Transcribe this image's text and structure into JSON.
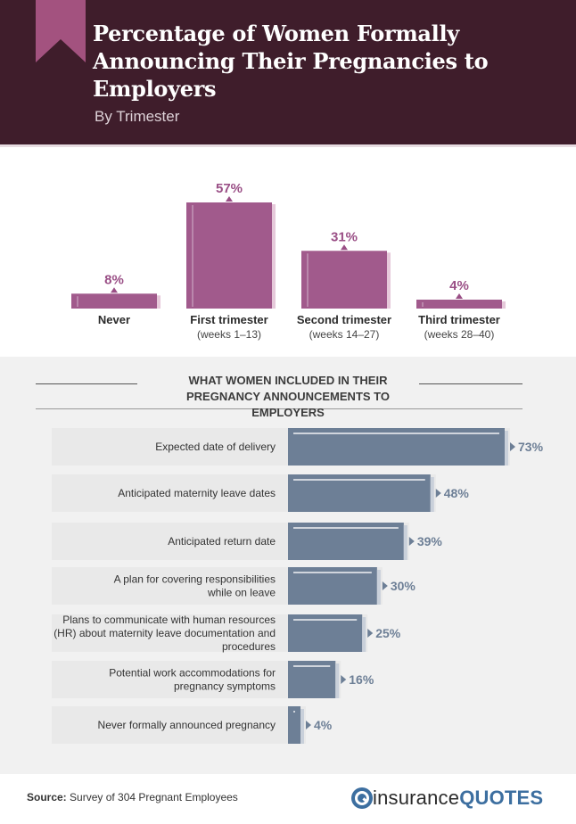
{
  "header": {
    "title": "Percentage of Women Formally Announcing Their Pregnancies to Employers",
    "subtitle": "By Trimester"
  },
  "colors": {
    "header_bg": "#3f1d2b",
    "ribbon": "#a3527f",
    "purple_bar": "#a15a8c",
    "purple_label": "#9a4f86",
    "blue_bar": "#6d7f96",
    "blue_label": "#6d7f96"
  },
  "chart_data": [
    {
      "type": "bar",
      "title": "Percentage of Women Formally Announcing Their Pregnancies to Employers",
      "subtitle": "By Trimester",
      "categories": [
        "Never",
        "First trimester",
        "Second trimester",
        "Third trimester"
      ],
      "sublabels": [
        "",
        "(weeks 1–13)",
        "(weeks 14–27)",
        "(weeks 28–40)"
      ],
      "values": [
        8,
        57,
        31,
        4
      ],
      "value_labels": [
        "8%",
        "57%",
        "31%",
        "4%"
      ],
      "unit": "%",
      "ylim": [
        0,
        57
      ],
      "grid": false,
      "legend": "none"
    },
    {
      "type": "bar",
      "orientation": "horizontal",
      "title": "WHAT WOMEN INCLUDED IN THEIR PREGNANCY ANNOUNCEMENTS TO EMPLOYERS",
      "categories": [
        "Expected date of delivery",
        "Anticipated maternity leave dates",
        "Anticipated return date",
        "A plan for covering responsibilities while on leave",
        "Plans to communicate with human resources (HR) about maternity leave documentation and procedures",
        "Potential work accommodations for pregnancy symptoms",
        "Never formally announced pregnancy"
      ],
      "category_lines": [
        [
          "Expected date of delivery"
        ],
        [
          "Anticipated maternity leave dates"
        ],
        [
          "Anticipated return date"
        ],
        [
          "A plan for covering responsibilities",
          "while on leave"
        ],
        [
          "Plans to communicate with human resources",
          "(HR) about maternity leave documentation and",
          "procedures"
        ],
        [
          "Potential work accommodations for",
          "pregnancy symptoms"
        ],
        [
          "Never formally announced pregnancy"
        ]
      ],
      "values": [
        73,
        48,
        39,
        30,
        25,
        16,
        4
      ],
      "value_labels": [
        "73%",
        "48%",
        "39%",
        "30%",
        "25%",
        "16%",
        "4%"
      ],
      "unit": "%",
      "xlim": [
        0,
        73
      ],
      "grid": false,
      "legend": "none"
    }
  ],
  "footer": {
    "source_label": "Source:",
    "source_text": "Survey of 304 Pregnant Employees",
    "logo_left": "insurance",
    "logo_right": "QUOTES",
    "logo_icon": "insurancequotes-logo-icon"
  }
}
